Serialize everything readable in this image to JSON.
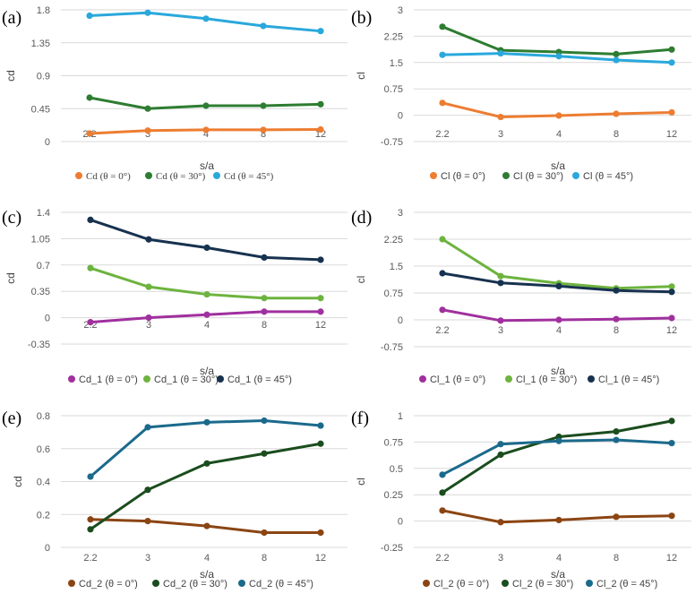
{
  "chart_data": [
    {
      "panel": "(a)",
      "type": "line",
      "categories": [
        "2.2",
        "3",
        "4",
        "8",
        "12"
      ],
      "xlabel": "s/a",
      "ylabel": "cd",
      "ylim": [
        0,
        1.8
      ],
      "yticks": [
        "0",
        "0.45",
        "0.9",
        "1.35",
        "1.8"
      ],
      "legend_font": "serif",
      "series": [
        {
          "name": "Cd (θ = 0°)",
          "color": "#ED7D31",
          "values": [
            0.11,
            0.15,
            0.16,
            0.16,
            0.165
          ]
        },
        {
          "name": "Cd (θ = 30°)",
          "color": "#2E7D32",
          "values": [
            0.6,
            0.45,
            0.49,
            0.49,
            0.51
          ]
        },
        {
          "name": "Cd (θ = 45°)",
          "color": "#2AA8DC",
          "values": [
            1.72,
            1.76,
            1.68,
            1.58,
            1.51
          ]
        }
      ]
    },
    {
      "panel": "(b)",
      "type": "line",
      "categories": [
        "2.2",
        "3",
        "4",
        "8",
        "12"
      ],
      "xlabel": "s/a",
      "ylabel": "cl",
      "ylim": [
        -0.75,
        3
      ],
      "yticks": [
        "-0.75",
        "0",
        "0.75",
        "1.5",
        "2.25",
        "3"
      ],
      "legend_font": "sans",
      "series": [
        {
          "name": "Cl (θ = 0°)",
          "color": "#ED7D31",
          "values": [
            0.35,
            -0.05,
            -0.01,
            0.04,
            0.08
          ]
        },
        {
          "name": "Cl (θ = 30°)",
          "color": "#2E7D32",
          "values": [
            2.52,
            1.85,
            1.8,
            1.74,
            1.87
          ]
        },
        {
          "name": "Cl (θ = 45°)",
          "color": "#2AA8DC",
          "values": [
            1.72,
            1.76,
            1.68,
            1.57,
            1.5
          ]
        }
      ]
    },
    {
      "panel": "(c)",
      "type": "line",
      "categories": [
        "2.2",
        "3",
        "4",
        "8",
        "12"
      ],
      "xlabel": "s/a",
      "ylabel": "cd",
      "ylim": [
        -0.35,
        1.4
      ],
      "yticks": [
        "-0.35",
        "0",
        "0.35",
        "0.7",
        "1.05",
        "1.4"
      ],
      "legend_font": "sans",
      "series": [
        {
          "name": "Cd_1 (θ = 0°)",
          "color": "#A0309E",
          "values": [
            -0.06,
            0.0,
            0.04,
            0.08,
            0.08
          ]
        },
        {
          "name": "Cd_1 (θ = 30°)",
          "color": "#6DB33F",
          "values": [
            0.66,
            0.41,
            0.31,
            0.26,
            0.26
          ]
        },
        {
          "name": "Cd_1 (θ = 45°)",
          "color": "#17324F",
          "values": [
            1.3,
            1.04,
            0.93,
            0.8,
            0.77
          ]
        }
      ]
    },
    {
      "panel": "(d)",
      "type": "line",
      "categories": [
        "2.2",
        "3",
        "4",
        "8",
        "12"
      ],
      "xlabel": "s/a",
      "ylabel": "cl",
      "ylim": [
        -0.75,
        3
      ],
      "yticks": [
        "-0.75",
        "0",
        "0.75",
        "1.5",
        "2.25",
        "3"
      ],
      "legend_font": "sans",
      "series": [
        {
          "name": "Cl_1 (θ = 0°)",
          "color": "#A0309E",
          "values": [
            0.28,
            -0.02,
            0.0,
            0.02,
            0.05
          ]
        },
        {
          "name": "Cl_1 (θ = 30°)",
          "color": "#6DB33F",
          "values": [
            2.25,
            1.22,
            1.02,
            0.88,
            0.93
          ]
        },
        {
          "name": "Cl_1 (θ = 45°)",
          "color": "#17324F",
          "values": [
            1.3,
            1.03,
            0.94,
            0.82,
            0.78
          ]
        }
      ]
    },
    {
      "panel": "(e)",
      "type": "line",
      "categories": [
        "2.2",
        "3",
        "4",
        "8",
        "12"
      ],
      "xlabel": "s/a",
      "ylabel": "cd",
      "ylim": [
        0,
        0.8
      ],
      "yticks": [
        "0",
        "0.2",
        "0.4",
        "0.6",
        "0.8"
      ],
      "legend_font": "sans",
      "series": [
        {
          "name": "Cd_2 (θ = 0°)",
          "color": "#8B4513",
          "values": [
            0.17,
            0.16,
            0.13,
            0.09,
            0.09
          ]
        },
        {
          "name": "Cd_2 (θ = 30°)",
          "color": "#1B4D1E",
          "values": [
            0.11,
            0.35,
            0.51,
            0.57,
            0.63
          ]
        },
        {
          "name": "Cd_2 (θ = 45°)",
          "color": "#1B6A8C",
          "values": [
            0.43,
            0.73,
            0.76,
            0.77,
            0.74
          ]
        }
      ]
    },
    {
      "panel": "(f)",
      "type": "line",
      "categories": [
        "2.2",
        "3",
        "4",
        "8",
        "12"
      ],
      "xlabel": "s/a",
      "ylabel": "cl",
      "ylim": [
        -0.25,
        1
      ],
      "yticks": [
        "-0.25",
        "0",
        "0.25",
        "0.5",
        "0.75",
        "1"
      ],
      "legend_font": "sans",
      "series": [
        {
          "name": "Cl_2 (θ = 0°)",
          "color": "#8B4513",
          "values": [
            0.1,
            -0.01,
            0.01,
            0.04,
            0.05
          ]
        },
        {
          "name": "Cl_2 (θ = 30°)",
          "color": "#1B4D1E",
          "values": [
            0.27,
            0.63,
            0.8,
            0.85,
            0.95
          ]
        },
        {
          "name": "Cl_2 (θ = 45°)",
          "color": "#1B6A8C",
          "values": [
            0.44,
            0.73,
            0.76,
            0.77,
            0.74
          ]
        }
      ]
    }
  ]
}
